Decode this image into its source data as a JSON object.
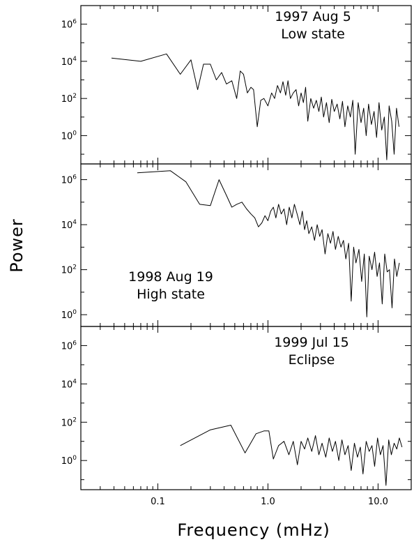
{
  "chart_data": {
    "type": "line",
    "xlabel": "Frequency (mHz)",
    "ylabel": "Power",
    "x_scale": "log",
    "y_scale": "log",
    "xlim": [
      0.02,
      20
    ],
    "x_tick_labels": [
      "0.1",
      "1.0",
      "10.0"
    ],
    "y_tick_labels": [
      "10^0",
      "10^2",
      "10^4",
      "10^6"
    ],
    "grid": false,
    "panels": [
      {
        "annotation": [
          "1997 Aug 5",
          "Low state"
        ],
        "annotation_position": "top-right",
        "ylim": [
          0.03,
          10000000.0
        ],
        "series": [
          {
            "x": [
              0.038,
              0.07,
              0.12,
              0.16,
              0.2,
              0.23,
              0.26,
              0.3,
              0.34,
              0.38,
              0.42,
              0.47,
              0.52,
              0.56,
              0.6,
              0.65,
              0.7,
              0.74,
              0.8,
              0.86,
              0.92,
              1.0,
              1.08,
              1.15,
              1.22,
              1.3,
              1.37,
              1.45,
              1.52,
              1.6,
              1.7,
              1.8,
              1.9,
              2.0,
              2.1,
              2.2,
              2.3,
              2.45,
              2.6,
              2.75,
              2.9,
              3.05,
              3.2,
              3.4,
              3.6,
              3.8,
              4.0,
              4.25,
              4.5,
              4.75,
              5.0,
              5.3,
              5.6,
              5.9,
              6.2,
              6.6,
              7.0,
              7.4,
              7.8,
              8.2,
              8.7,
              9.2,
              9.7,
              10.2,
              10.8,
              11.4,
              12.0,
              12.6,
              13.3,
              14.0,
              14.7,
              15.5
            ],
            "y": [
              15000,
              10000,
              25000,
              2000,
              12000,
              300,
              7000,
              7000,
              1000,
              2500,
              600,
              900,
              100,
              3000,
              2000,
              200,
              400,
              300,
              3,
              80,
              100,
              40,
              200,
              100,
              500,
              200,
              800,
              150,
              900,
              100,
              200,
              300,
              40,
              200,
              60,
              400,
              6,
              100,
              30,
              80,
              20,
              120,
              10,
              60,
              5,
              90,
              20,
              50,
              8,
              70,
              3,
              40,
              10,
              80,
              0.1,
              60,
              5,
              30,
              1,
              50,
              4,
              20,
              0.8,
              60,
              2,
              10,
              0.05,
              40,
              6,
              0.1,
              30,
              3
            ]
          }
        ]
      },
      {
        "annotation": [
          "1998 Aug 19",
          "High state"
        ],
        "annotation_position": "bottom-left",
        "ylim": [
          0.3,
          5000000.0
        ],
        "series": [
          {
            "x": [
              0.065,
              0.13,
              0.18,
              0.24,
              0.3,
              0.36,
              0.42,
              0.47,
              0.52,
              0.58,
              0.64,
              0.7,
              0.76,
              0.82,
              0.88,
              0.94,
              1.0,
              1.06,
              1.12,
              1.18,
              1.25,
              1.32,
              1.4,
              1.48,
              1.56,
              1.65,
              1.74,
              1.84,
              1.95,
              2.05,
              2.15,
              2.25,
              2.35,
              2.5,
              2.65,
              2.8,
              2.95,
              3.1,
              3.3,
              3.5,
              3.7,
              3.9,
              4.1,
              4.35,
              4.6,
              4.85,
              5.1,
              5.4,
              5.7,
              6.0,
              6.3,
              6.7,
              7.1,
              7.5,
              7.9,
              8.3,
              8.8,
              9.3,
              9.8,
              10.3,
              10.9,
              11.5,
              12.1,
              12.7,
              13.4,
              14.1,
              14.8,
              15.6
            ],
            "y": [
              2000000,
              2500000,
              800000,
              80000,
              70000,
              1000000,
              200000,
              60000,
              80000,
              100000,
              50000,
              30000,
              20000,
              8000,
              12000,
              25000,
              15000,
              40000,
              60000,
              20000,
              80000,
              30000,
              50000,
              10000,
              60000,
              20000,
              80000,
              30000,
              10000,
              40000,
              6000,
              15000,
              4000,
              8000,
              2000,
              10000,
              3000,
              6000,
              500,
              4000,
              1500,
              5000,
              800,
              3000,
              1000,
              2000,
              300,
              1500,
              4,
              1000,
              200,
              800,
              30,
              500,
              0.8,
              400,
              100,
              600,
              50,
              200,
              3,
              500,
              80,
              100,
              2,
              300,
              50,
              200
            ]
          }
        ]
      },
      {
        "annotation": [
          "1999 Jul 15",
          "Eclipse"
        ],
        "annotation_position": "top-right",
        "ylim": [
          0.03,
          10000000.0
        ],
        "series": [
          {
            "x": [
              0.16,
              0.3,
              0.46,
              0.62,
              0.78,
              0.92,
              1.02,
              1.12,
              1.25,
              1.4,
              1.55,
              1.7,
              1.85,
              2.0,
              2.15,
              2.3,
              2.5,
              2.7,
              2.9,
              3.1,
              3.35,
              3.6,
              3.85,
              4.1,
              4.4,
              4.7,
              5.0,
              5.35,
              5.7,
              6.1,
              6.5,
              6.9,
              7.3,
              7.8,
              8.3,
              8.8,
              9.3,
              9.9,
              10.5,
              11.1,
              11.8,
              12.5,
              13.2,
              14.0,
              14.8,
              15.6,
              16.5
            ],
            "y": [
              6,
              40,
              70,
              2.5,
              25,
              35,
              35,
              1.2,
              6,
              10,
              2,
              10,
              0.6,
              10,
              4,
              15,
              3,
              20,
              2,
              8,
              1.5,
              15,
              3,
              10,
              1,
              12,
              2,
              6,
              0.3,
              8,
              1.5,
              5,
              0.2,
              10,
              3,
              6,
              0.5,
              15,
              2,
              6,
              0.05,
              12,
              2,
              8,
              4,
              15,
              5
            ]
          }
        ]
      }
    ]
  }
}
